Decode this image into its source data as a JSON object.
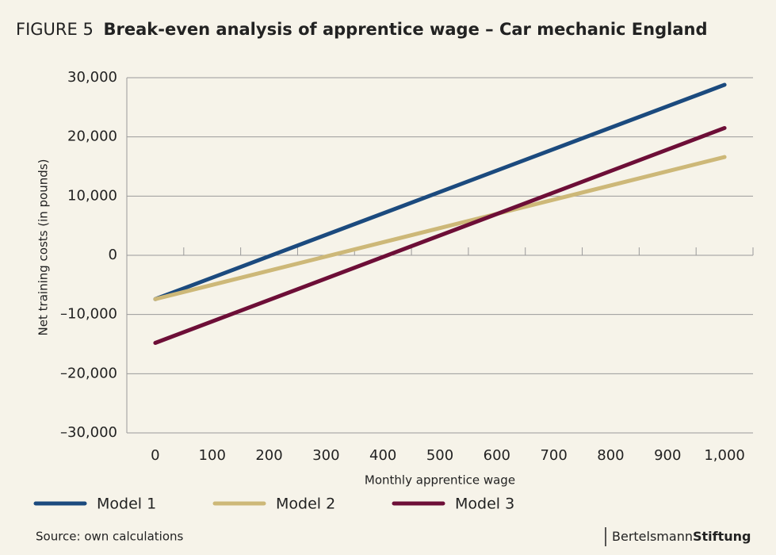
{
  "chart_data": {
    "type": "line",
    "figure_label": "FIGURE 5",
    "title": "Break-even analysis of apprentice wage – Car mechanic England",
    "y_label": "Net training costs (in pounds)",
    "x_label": "Monthly apprentice wage",
    "x": [
      0,
      1000
    ],
    "series": [
      {
        "name": "Model 1",
        "color": "#1b4a7e",
        "values": [
          -7400,
          28800
        ]
      },
      {
        "name": "Model 2",
        "color": "#cdb878",
        "values": [
          -7400,
          16600
        ]
      },
      {
        "name": "Model 3",
        "color": "#6d0e37",
        "values": [
          -14800,
          21500
        ]
      }
    ],
    "xlim": [
      -50,
      1050
    ],
    "xticks": [
      0,
      100,
      200,
      300,
      400,
      500,
      600,
      700,
      800,
      900,
      {
        "value": 1000,
        "label": "1,000"
      }
    ],
    "x_minor_ticks": [
      50,
      150,
      250,
      350,
      450,
      550,
      650,
      750,
      850,
      950,
      1050
    ],
    "ylim": [
      -30000,
      30000
    ],
    "yticks": [
      {
        "value": -30000,
        "label": "–30,000"
      },
      {
        "value": -20000,
        "label": "–20,000"
      },
      {
        "value": -10000,
        "label": "–10,000"
      },
      0,
      {
        "value": 10000,
        "label": "10,000"
      },
      {
        "value": 20000,
        "label": "20,000"
      },
      {
        "value": 30000,
        "label": "30,000"
      }
    ],
    "grid": true,
    "legend": "bottom",
    "source": "Source: own calculations",
    "brand": [
      "Bertelsmann",
      "Stiftung"
    ]
  }
}
